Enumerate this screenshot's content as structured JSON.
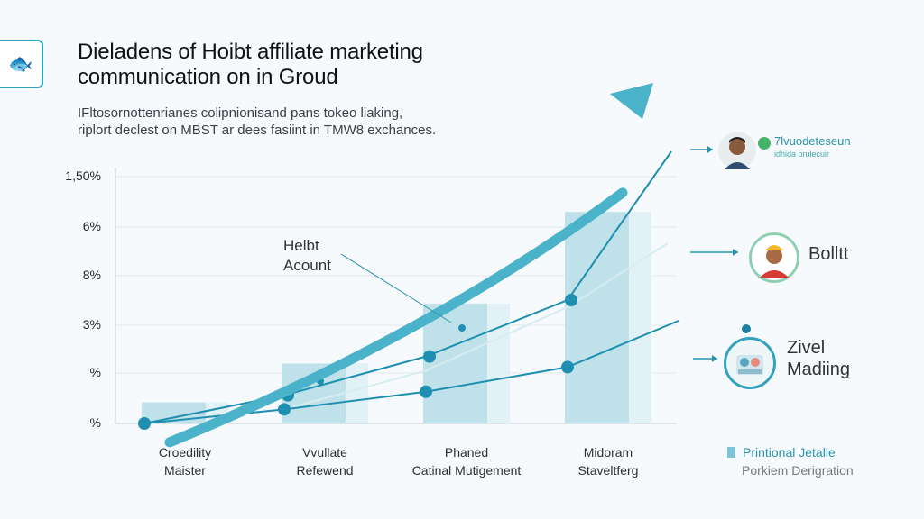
{
  "header": {
    "logo_icon": "fish-icon",
    "title_line1": "Dieladens of Hoibt affiliate marketing",
    "title_line2": "communication on in Groud",
    "subtitle_line1": "IFltosornottenrianes colipnionisand pans tokeo liaking,",
    "subtitle_line2": "riplort declest on MBST ar dees fasiint in TMW8 exchances."
  },
  "annotations": {
    "callout": [
      "Helbt",
      "Acount"
    ],
    "person1_label": [
      "7lvuodeteseun",
      "idhida brulecuir"
    ],
    "person2_label": "Bolltt",
    "person3_label": [
      "Zivel",
      "Madiing"
    ]
  },
  "legend": {
    "label": "Printional Jetalle",
    "sublabel": "Porkiem Derigration"
  },
  "colors": {
    "bar": "#bfe2ea",
    "bar_highlight": "#e1f1f5",
    "trend_arrow": "#4bb3c9",
    "line": "#1e8fb0",
    "accent": "#2aa6c0"
  },
  "chart_data": {
    "type": "bar",
    "categories": [
      [
        "Croedility",
        "Maister"
      ],
      [
        "Vvullate",
        "Refewend"
      ],
      [
        "Phaned",
        "Catinal Mutigement"
      ],
      [
        "Midoram",
        "Staveltferg"
      ]
    ],
    "ytick_labels": [
      "%",
      "%",
      "3%",
      "8%",
      "6%",
      "1,50%"
    ],
    "bar_values": [
      0.6,
      1.7,
      3.4,
      6.0
    ],
    "series": [
      {
        "values": [
          0.0,
          0.4,
          1.5,
          3.3
        ]
      },
      {
        "values": [
          0.0,
          0.4,
          0.9,
          1.6
        ]
      },
      {
        "values": [
          0.0,
          0.8,
          1.9,
          3.5
        ]
      }
    ],
    "trend_arrow": {
      "from": 1.0,
      "to": 6.8
    },
    "grid": true
  }
}
